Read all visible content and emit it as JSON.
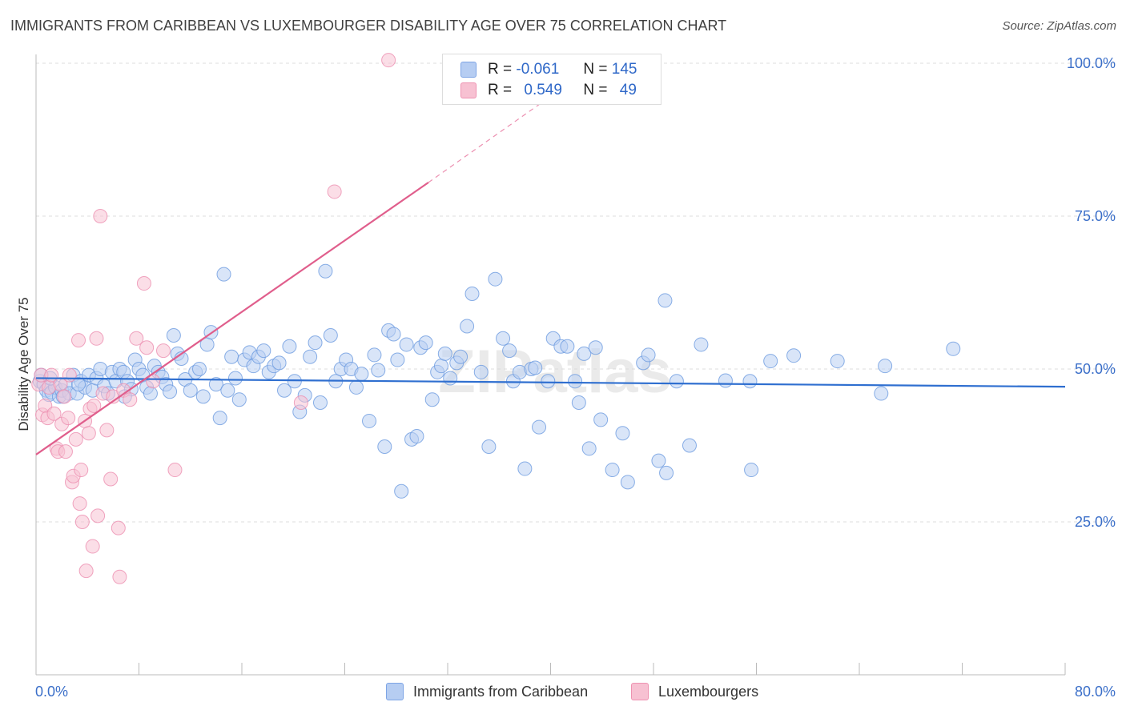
{
  "chart_data": {
    "type": "scatter",
    "title": "IMMIGRANTS FROM CARIBBEAN VS LUXEMBOURGER DISABILITY AGE OVER 75 CORRELATION CHART",
    "source": "Source: ZipAtlas.com",
    "xlabel": "",
    "ylabel": "Disability Age Over 75",
    "xlim": [
      0,
      80
    ],
    "ylim": [
      0,
      105
    ],
    "x_tick_labels": [
      "0.0%",
      "80.0%"
    ],
    "y_ticks": [
      25,
      50,
      75,
      100
    ],
    "y_tick_labels": [
      "25.0%",
      "50.0%",
      "75.0%",
      "100.0%"
    ],
    "watermark": "ZIPatlas",
    "legend": {
      "rows": [
        {
          "r_label": "R =",
          "r_value": "-0.061",
          "n_label": "N =",
          "n_value": "145"
        },
        {
          "r_label": "R =",
          "r_value": "0.549",
          "n_label": "N =",
          "n_value": "49"
        }
      ]
    },
    "bottom_legend": [
      "Immigrants from Caribbean",
      "Luxembourgers"
    ],
    "colors": {
      "blue": "#6d9be0",
      "blue_fill": "#b9d0f3",
      "blue_line": "#2f6fd0",
      "pink": "#ec8fb0",
      "pink_fill": "#f7c3d3",
      "pink_line": "#e05e8c"
    },
    "series": [
      {
        "name": "Immigrants from Caribbean",
        "color": "blue",
        "trend": {
          "x0": 0,
          "y0": 48.5,
          "x1": 80,
          "y1": 47.1
        },
        "points": [
          [
            0.3,
            48
          ],
          [
            0.6,
            47.5
          ],
          [
            0.8,
            46.5
          ],
          [
            1,
            45.8
          ],
          [
            1.2,
            46.2
          ],
          [
            1.5,
            47
          ],
          [
            1.8,
            45.5
          ],
          [
            2,
            46.5
          ],
          [
            2.3,
            47.5
          ],
          [
            2.6,
            46
          ],
          [
            2.9,
            49
          ],
          [
            3.2,
            46
          ],
          [
            3.5,
            48
          ],
          [
            3.8,
            47
          ],
          [
            4.1,
            49
          ],
          [
            4.4,
            46.5
          ],
          [
            4.7,
            48.5
          ],
          [
            5,
            50
          ],
          [
            5.3,
            47.2
          ],
          [
            5.6,
            46
          ],
          [
            5.9,
            49.5
          ],
          [
            6.2,
            48
          ],
          [
            6.5,
            50
          ],
          [
            6.8,
            49.5
          ],
          [
            7.1,
            48
          ],
          [
            7.4,
            46.7
          ],
          [
            7.7,
            51.5
          ],
          [
            8,
            50
          ],
          [
            8.3,
            49
          ],
          [
            8.6,
            47
          ],
          [
            8.9,
            46
          ],
          [
            9.2,
            50.5
          ],
          [
            9.5,
            49.5
          ],
          [
            9.8,
            48.7
          ],
          [
            10.1,
            47.5
          ],
          [
            10.4,
            46.3
          ],
          [
            10.7,
            55.5
          ],
          [
            11,
            52.5
          ],
          [
            11.3,
            51.7
          ],
          [
            11.6,
            48.3
          ],
          [
            12,
            46.5
          ],
          [
            12.4,
            49.5
          ],
          [
            12.7,
            50
          ],
          [
            13,
            45.5
          ],
          [
            13.3,
            54
          ],
          [
            13.6,
            56
          ],
          [
            14,
            47.5
          ],
          [
            14.3,
            42
          ],
          [
            14.6,
            65.5
          ],
          [
            14.9,
            46.5
          ],
          [
            15.2,
            52
          ],
          [
            15.5,
            48.5
          ],
          [
            15.8,
            45
          ],
          [
            16.2,
            51.5
          ],
          [
            16.6,
            52.7
          ],
          [
            16.9,
            50.5
          ],
          [
            17.3,
            52
          ],
          [
            17.7,
            53
          ],
          [
            18.1,
            49.5
          ],
          [
            18.5,
            50.5
          ],
          [
            18.9,
            51
          ],
          [
            19.3,
            46.5
          ],
          [
            19.7,
            53.7
          ],
          [
            20.1,
            48
          ],
          [
            20.5,
            43
          ],
          [
            20.9,
            45.7
          ],
          [
            21.3,
            52
          ],
          [
            21.7,
            54.3
          ],
          [
            22.1,
            44.5
          ],
          [
            22.5,
            66
          ],
          [
            22.9,
            55.5
          ],
          [
            23.3,
            48
          ],
          [
            23.7,
            50
          ],
          [
            24.1,
            51.5
          ],
          [
            24.5,
            50
          ],
          [
            24.9,
            47
          ],
          [
            25.3,
            49.2
          ],
          [
            25.9,
            41.5
          ],
          [
            26.3,
            52.3
          ],
          [
            26.6,
            49.8
          ],
          [
            27.1,
            37.3
          ],
          [
            27.4,
            56.3
          ],
          [
            27.8,
            55.7
          ],
          [
            28.1,
            51.5
          ],
          [
            28.4,
            30
          ],
          [
            28.8,
            54
          ],
          [
            29.2,
            38.5
          ],
          [
            29.6,
            39
          ],
          [
            29.9,
            53.5
          ],
          [
            30.3,
            54.3
          ],
          [
            30.8,
            45
          ],
          [
            31.2,
            49.5
          ],
          [
            31.5,
            50.5
          ],
          [
            31.8,
            52.5
          ],
          [
            32.2,
            48.5
          ],
          [
            32.7,
            51
          ],
          [
            33,
            52
          ],
          [
            33.5,
            57
          ],
          [
            33.9,
            62.3
          ],
          [
            34.6,
            49.5
          ],
          [
            35.2,
            37.3
          ],
          [
            35.7,
            64.7
          ],
          [
            36.3,
            55
          ],
          [
            36.8,
            53
          ],
          [
            37.1,
            48
          ],
          [
            37.6,
            49.5
          ],
          [
            38,
            33.7
          ],
          [
            38.5,
            50
          ],
          [
            38.8,
            50.2
          ],
          [
            39.1,
            40.5
          ],
          [
            39.8,
            48
          ],
          [
            40.2,
            55
          ],
          [
            40.8,
            53.7
          ],
          [
            41.3,
            53.7
          ],
          [
            41.9,
            48
          ],
          [
            42.2,
            44.5
          ],
          [
            42.6,
            52.5
          ],
          [
            43,
            37
          ],
          [
            43.5,
            53.5
          ],
          [
            43.9,
            41.7
          ],
          [
            44.8,
            33.5
          ],
          [
            45.6,
            39.5
          ],
          [
            46,
            31.5
          ],
          [
            47.2,
            51
          ],
          [
            47.6,
            52.3
          ],
          [
            48.4,
            35
          ],
          [
            48.9,
            61.2
          ],
          [
            49,
            33
          ],
          [
            49.8,
            48
          ],
          [
            50.8,
            37.5
          ],
          [
            51.7,
            54
          ],
          [
            53.6,
            48.1
          ],
          [
            55.5,
            48
          ],
          [
            55.6,
            33.5
          ],
          [
            57.1,
            51.3
          ],
          [
            58.9,
            52.2
          ],
          [
            62.3,
            51.3
          ],
          [
            66,
            50.5
          ],
          [
            65.7,
            46
          ],
          [
            71.3,
            53.3
          ],
          [
            0.4,
            49
          ],
          [
            1.1,
            48.5
          ],
          [
            2.1,
            45.5
          ],
          [
            3.3,
            47.5
          ],
          [
            6.9,
            45.5
          ]
        ]
      },
      {
        "name": "Luxembourgers",
        "color": "pink",
        "trend": {
          "x0": 0,
          "y0": 36,
          "x1": 30.5,
          "y1": 80.5,
          "x_dash_end": 41.3,
          "y_dash_end": 96.5
        },
        "points": [
          [
            0.2,
            47.5
          ],
          [
            0.4,
            49
          ],
          [
            0.5,
            42.5
          ],
          [
            0.7,
            44
          ],
          [
            0.9,
            42
          ],
          [
            1,
            47
          ],
          [
            1.2,
            49
          ],
          [
            1.4,
            42.7
          ],
          [
            1.6,
            37
          ],
          [
            1.7,
            36.5
          ],
          [
            1.9,
            47.5
          ],
          [
            2,
            41
          ],
          [
            2.2,
            45.5
          ],
          [
            2.3,
            36.5
          ],
          [
            2.5,
            42
          ],
          [
            2.6,
            49
          ],
          [
            2.8,
            31.5
          ],
          [
            2.9,
            32.5
          ],
          [
            3.1,
            38.5
          ],
          [
            3.3,
            54.7
          ],
          [
            3.4,
            28
          ],
          [
            3.5,
            33.5
          ],
          [
            3.6,
            25
          ],
          [
            3.8,
            41.5
          ],
          [
            3.9,
            17
          ],
          [
            4.1,
            39.5
          ],
          [
            4.2,
            43.5
          ],
          [
            4.4,
            21
          ],
          [
            4.5,
            44
          ],
          [
            4.7,
            55
          ],
          [
            4.8,
            26
          ],
          [
            5,
            75
          ],
          [
            5.2,
            46
          ],
          [
            5.5,
            40
          ],
          [
            5.8,
            32
          ],
          [
            6,
            45.5
          ],
          [
            6.4,
            24
          ],
          [
            6.5,
            16
          ],
          [
            6.8,
            46.5
          ],
          [
            7.3,
            45
          ],
          [
            7.8,
            55
          ],
          [
            8.4,
            64
          ],
          [
            8.6,
            53.5
          ],
          [
            9.1,
            48
          ],
          [
            9.9,
            53
          ],
          [
            10.8,
            33.5
          ],
          [
            20.6,
            44.5
          ],
          [
            23.2,
            79
          ],
          [
            27.4,
            100.5
          ]
        ]
      }
    ]
  }
}
